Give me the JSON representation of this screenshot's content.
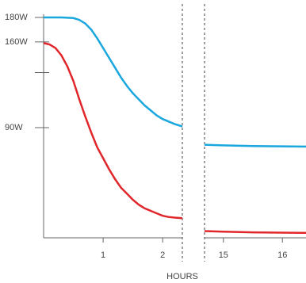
{
  "chart_data": {
    "type": "line",
    "xlabel": "HOURS",
    "ylim": [
      0,
      180
    ],
    "yticks": [
      {
        "value": 180,
        "label": "180W"
      },
      {
        "value": 160,
        "label": "160W"
      },
      {
        "value": 135
      },
      {
        "value": 90,
        "label": "90W"
      }
    ],
    "panels": [
      {
        "xlim": [
          0,
          2.33
        ],
        "xticks": [
          1,
          2
        ],
        "series": [
          {
            "color": "#1aa7de",
            "x": [
              0,
              0.3,
              0.5,
              0.6,
              0.7,
              0.8,
              0.9,
              1.0,
              1.1,
              1.2,
              1.3,
              1.4,
              1.5,
              1.6,
              1.7,
              1.8,
              1.9,
              2.0,
              2.1,
              2.2,
              2.33
            ],
            "values": [
              180,
              180,
              179.5,
              178,
              175,
              170,
              163,
              155,
              147,
              139,
              131,
              124,
              118,
              113,
              108,
              104,
              100,
              97,
              95,
              93,
              91
            ]
          },
          {
            "color": "#e0262b",
            "x": [
              0,
              0.1,
              0.2,
              0.3,
              0.4,
              0.5,
              0.6,
              0.7,
              0.8,
              0.9,
              1.0,
              1.1,
              1.2,
              1.3,
              1.4,
              1.5,
              1.6,
              1.7,
              1.8,
              1.9,
              2.0,
              2.1,
              2.2,
              2.33
            ],
            "values": [
              159,
              158,
              155,
              149,
              140,
              128,
              113,
              99,
              86,
              74,
              65,
              56,
              48,
              41,
              36,
              31,
              27,
              24,
              22,
              20,
              18,
              17,
              16.5,
              16
            ]
          }
        ]
      },
      {
        "xlim": [
          14.68,
          16.4
        ],
        "xticks": [
          15,
          16
        ],
        "series": [
          {
            "color": "#1aa7de",
            "x": [
              14.68,
              15,
              15.5,
              16,
              16.4
            ],
            "values": [
              76,
              75.5,
              75,
              74.7,
              74.5
            ]
          },
          {
            "color": "#e0262b",
            "x": [
              14.68,
              15,
              15.5,
              16,
              16.4
            ],
            "values": [
              5.5,
              5,
              4.5,
              4.2,
              4
            ]
          }
        ]
      }
    ]
  }
}
